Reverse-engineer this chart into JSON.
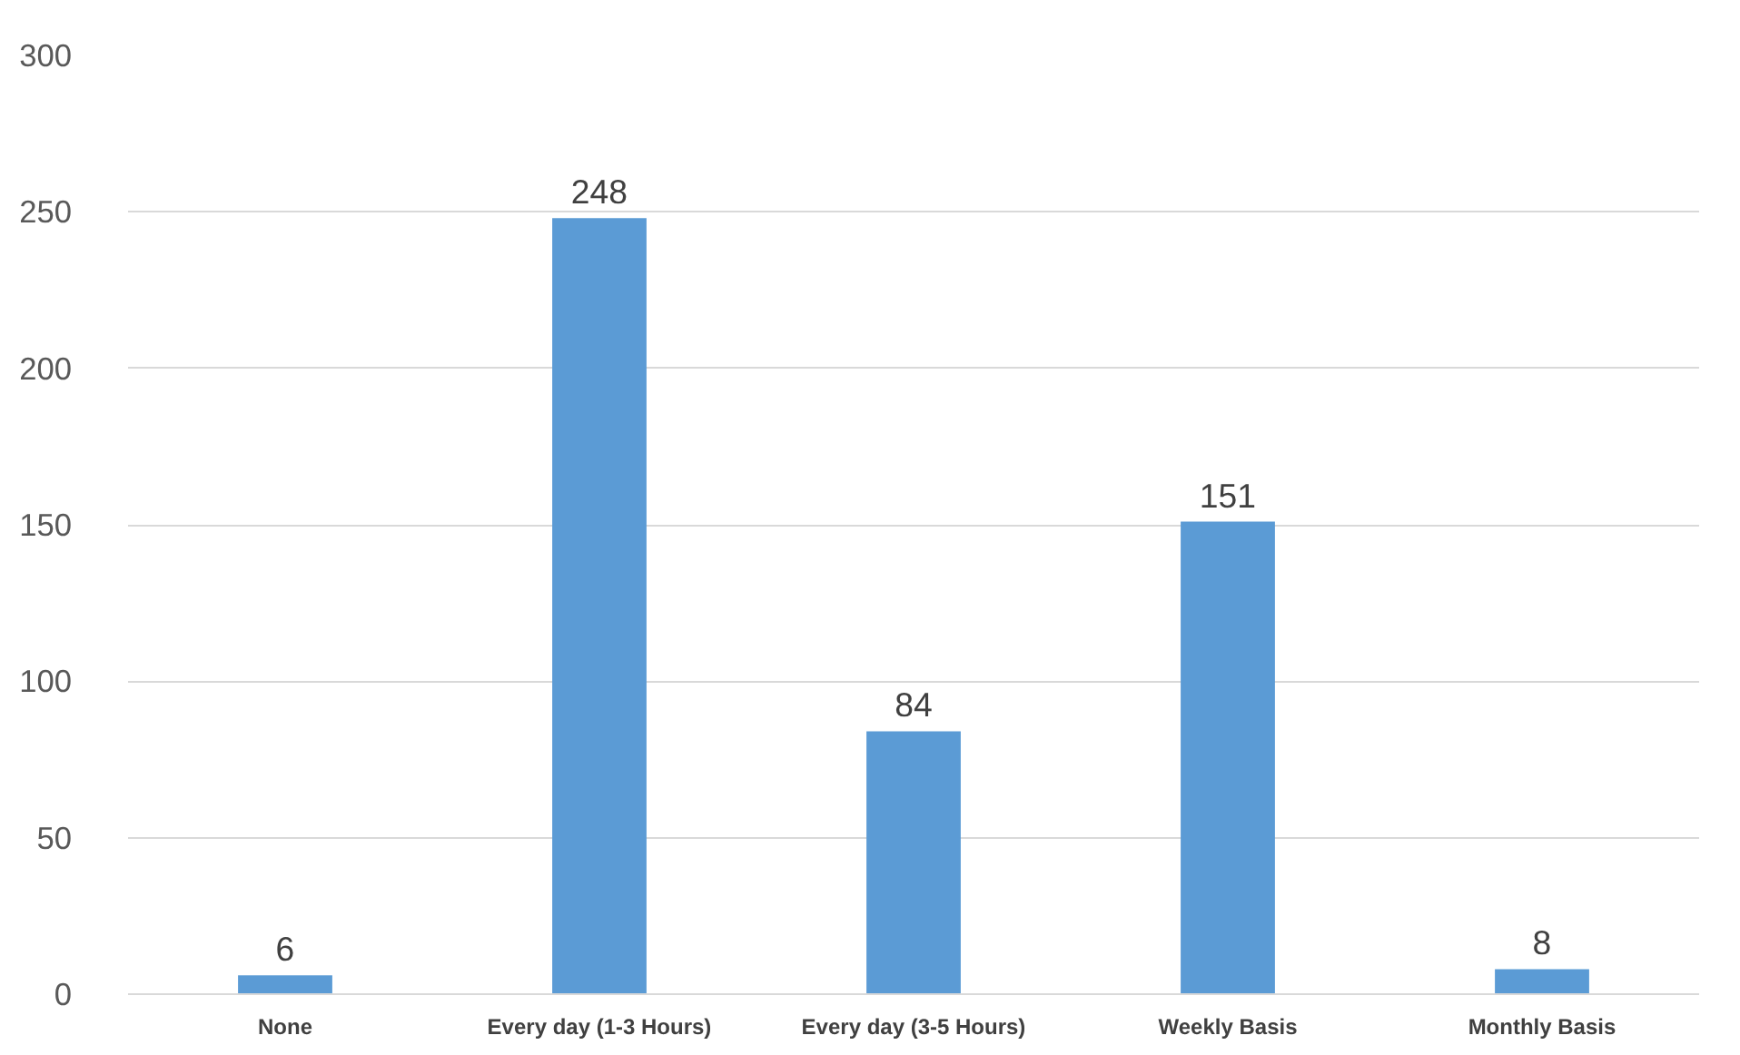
{
  "chart_data": {
    "type": "bar",
    "categories": [
      "None",
      "Every day (1-3 Hours)",
      "Every day (3-5 Hours)",
      "Weekly Basis",
      "Monthly Basis"
    ],
    "values": [
      6,
      248,
      84,
      151,
      8
    ],
    "color": "#5b9bd5",
    "ylim": [
      0,
      300
    ],
    "yticks": [
      0,
      50,
      100,
      150,
      200,
      250,
      300
    ],
    "grid": "y",
    "data_labels": true
  }
}
